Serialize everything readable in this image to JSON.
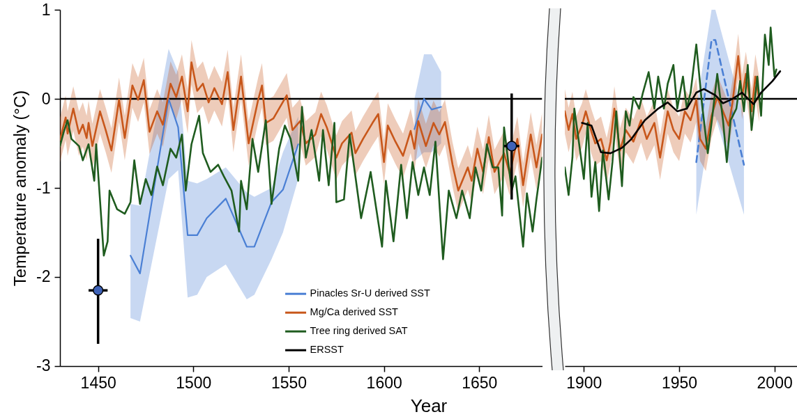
{
  "chart_data": [
    {
      "type": "line",
      "xlabel": "Year",
      "ylabel": "Temperature anomaly (°C)",
      "xlim": [
        1430,
        1683
      ],
      "xticks": [
        1450,
        1500,
        1550,
        1600,
        1650
      ],
      "ylim": [
        -3,
        1
      ],
      "yticks": [
        -3,
        -2,
        -1,
        0,
        1
      ],
      "legend": "bottom",
      "ref_lines": [
        {
          "axis": "y",
          "value": 0,
          "color": "#000000"
        }
      ],
      "series": [
        {
          "name": "Pinacles Sr-U derived SST",
          "color": "#4a7fd4",
          "x": [
            1467,
            1472,
            1487,
            1492,
            1497,
            1502,
            1507,
            1517,
            1528,
            1532,
            1541,
            1547,
            1555,
            1585,
            1616,
            1621,
            1625,
            1630
          ],
          "values": [
            -1.76,
            -1.96,
            0.0,
            -0.32,
            -1.53,
            -1.53,
            -1.34,
            -1.12,
            -1.66,
            -1.66,
            -1.16,
            -1.02,
            -0.51,
            null,
            -0.34,
            0.0,
            -0.12,
            -0.09
          ],
          "lower": [
            -2.46,
            -2.5,
            -0.9,
            -0.8,
            -2.23,
            -2.2,
            -2.0,
            -1.86,
            -2.25,
            -2.2,
            -1.8,
            -1.5,
            -0.9,
            null,
            -0.7,
            -0.6,
            -0.6,
            -0.5
          ],
          "upper": [
            -1.18,
            -1.2,
            0.56,
            0.3,
            -0.92,
            -0.95,
            -0.9,
            -0.77,
            -1.05,
            -1.1,
            -1.0,
            -0.6,
            -0.2,
            null,
            0.0,
            0.5,
            0.5,
            0.3
          ]
        },
        {
          "name": "Mg/Ca derived SST",
          "color": "#c8571b",
          "x": [
            1430,
            1433,
            1434,
            1437,
            1440,
            1442,
            1444,
            1445,
            1447,
            1451,
            1454,
            1457,
            1461,
            1464,
            1468,
            1471,
            1474,
            1477,
            1481,
            1484,
            1488,
            1491,
            1494,
            1497,
            1499,
            1502,
            1505,
            1508,
            1511,
            1515,
            1518,
            1521,
            1525,
            1529,
            1534,
            1536,
            1538,
            1542,
            1549,
            1552,
            1556,
            1559,
            1564,
            1567,
            1570,
            1575,
            1578,
            1583,
            1585,
            1589,
            1594,
            1597,
            1600,
            1602,
            1606,
            1610,
            1614,
            1616,
            1618,
            1622,
            1626,
            1629,
            1632,
            1636,
            1639,
            1644,
            1646,
            1649,
            1652,
            1655,
            1658,
            1663,
            1666,
            1670,
            1673,
            1677,
            1680,
            1683
          ],
          "values": [
            -0.46,
            -0.21,
            -0.39,
            -0.11,
            -0.39,
            -0.29,
            -0.44,
            -0.27,
            -0.53,
            -0.14,
            -0.35,
            -0.58,
            -0.01,
            -0.44,
            0.15,
            -0.01,
            0.21,
            -0.37,
            -0.14,
            -0.29,
            0.17,
            0.02,
            0.25,
            -0.14,
            0.41,
            0.09,
            0.17,
            -0.04,
            0.12,
            -0.06,
            0.3,
            -0.35,
            0.25,
            -0.5,
            -0.01,
            0.15,
            -0.27,
            -0.22,
            0.04,
            -0.35,
            -0.25,
            -0.5,
            -0.4,
            -0.17,
            -0.32,
            -0.66,
            -0.5,
            -0.38,
            -0.61,
            -0.45,
            -0.27,
            -0.17,
            -0.71,
            -0.3,
            -0.48,
            -0.64,
            -0.36,
            -0.56,
            -0.25,
            -0.53,
            -0.27,
            -0.4,
            -0.26,
            -0.74,
            -1.03,
            -0.77,
            -0.92,
            -0.56,
            -0.82,
            -0.43,
            -0.82,
            -0.61,
            -0.84,
            -0.45,
            -0.97,
            -0.4,
            -0.77,
            -0.4
          ],
          "lower": [
            -0.71,
            -0.46,
            -0.64,
            -0.36,
            -0.64,
            -0.54,
            -0.69,
            -0.52,
            -0.78,
            -0.39,
            -0.6,
            -0.83,
            -0.26,
            -0.69,
            -0.1,
            -0.26,
            -0.04,
            -0.62,
            -0.39,
            -0.54,
            -0.08,
            -0.23,
            0.0,
            -0.39,
            0.16,
            -0.16,
            -0.08,
            -0.29,
            -0.13,
            -0.31,
            0.05,
            -0.6,
            0.0,
            -0.75,
            -0.26,
            -0.1,
            -0.52,
            -0.47,
            -0.21,
            -0.6,
            -0.5,
            -0.75,
            -0.65,
            -0.42,
            -0.57,
            -0.91,
            -0.75,
            -0.63,
            -0.86,
            -0.7,
            -0.52,
            -0.42,
            -0.96,
            -0.55,
            -0.73,
            -0.89,
            -0.61,
            -0.81,
            -0.5,
            -0.78,
            -0.52,
            -0.65,
            -0.51,
            -0.99,
            -1.28,
            -1.02,
            -1.17,
            -0.81,
            -1.07,
            -0.68,
            -1.07,
            -0.86,
            -1.09,
            -0.7,
            -1.22,
            -0.65,
            -1.02,
            -0.65
          ],
          "upper": [
            -0.21,
            0.04,
            -0.14,
            0.14,
            -0.14,
            -0.04,
            -0.19,
            -0.02,
            -0.28,
            0.11,
            -0.1,
            -0.33,
            0.24,
            -0.19,
            0.4,
            0.24,
            0.46,
            -0.12,
            0.11,
            -0.04,
            0.42,
            0.27,
            0.5,
            0.11,
            0.66,
            0.34,
            0.42,
            0.21,
            0.37,
            0.19,
            0.55,
            -0.1,
            0.5,
            -0.25,
            0.24,
            0.4,
            -0.02,
            0.03,
            0.29,
            -0.1,
            0.0,
            -0.25,
            -0.15,
            0.08,
            -0.07,
            -0.41,
            -0.25,
            -0.13,
            -0.36,
            -0.2,
            -0.02,
            0.08,
            -0.46,
            -0.05,
            -0.23,
            -0.39,
            -0.11,
            -0.31,
            0.0,
            -0.28,
            -0.02,
            -0.15,
            -0.01,
            -0.49,
            -0.78,
            -0.52,
            -0.67,
            -0.31,
            -0.57,
            -0.18,
            -0.57,
            -0.36,
            -0.59,
            -0.2,
            -0.72,
            -0.15,
            -0.52,
            -0.15
          ]
        },
        {
          "name": "Tree ring derived SAT",
          "color": "#1f5c1f",
          "x": [
            1430,
            1432,
            1434,
            1436,
            1440,
            1442,
            1445,
            1448,
            1449,
            1453,
            1455,
            1456,
            1460,
            1464,
            1467,
            1469,
            1472,
            1475,
            1478,
            1481,
            1484,
            1488,
            1491,
            1494,
            1496,
            1499,
            1503,
            1505,
            1509,
            1513,
            1516,
            1520,
            1524,
            1525,
            1528,
            1531,
            1534,
            1538,
            1541,
            1545,
            1548,
            1551,
            1555,
            1557,
            1559,
            1562,
            1566,
            1568,
            1571,
            1574,
            1575,
            1579,
            1582,
            1588,
            1591,
            1593,
            1596,
            1599,
            1601,
            1605,
            1609,
            1612,
            1615,
            1618,
            1621,
            1624,
            1627,
            1631,
            1634,
            1638,
            1641,
            1645,
            1648,
            1651,
            1654,
            1657,
            1660,
            1662,
            1663,
            1667,
            1669,
            1673,
            1675,
            1678,
            1680,
            1683
          ],
          "values": [
            -0.53,
            -0.37,
            -0.24,
            -0.45,
            -0.53,
            -0.69,
            -0.51,
            -0.92,
            -0.51,
            -1.76,
            -1.6,
            -1.03,
            -1.24,
            -1.29,
            -1.16,
            -0.69,
            -1.18,
            -0.9,
            -1.08,
            -0.76,
            -0.97,
            -0.56,
            -0.66,
            -0.4,
            -1.03,
            -0.51,
            -0.19,
            -0.61,
            -0.82,
            -0.74,
            -0.87,
            -1.03,
            -1.49,
            -0.92,
            -1.24,
            -0.45,
            -0.82,
            -0.24,
            -1.18,
            -0.56,
            -0.3,
            -0.45,
            -0.92,
            -0.09,
            -0.66,
            -0.35,
            -0.92,
            -0.35,
            -0.97,
            -0.27,
            -1.16,
            -1.13,
            -0.4,
            -1.34,
            -1.03,
            -0.82,
            -1.24,
            -1.66,
            -0.92,
            -1.6,
            -0.74,
            -1.34,
            -0.71,
            -1.08,
            -0.77,
            -1.08,
            -0.48,
            -1.8,
            -1.03,
            -1.34,
            -1.03,
            -1.34,
            -0.77,
            -1.03,
            -0.51,
            -0.77,
            -0.77,
            -1.31,
            -0.32,
            -1.03,
            -0.87,
            -1.66,
            -1.06,
            -1.49,
            -1.13,
            -0.66
          ]
        },
        {
          "type": "scatter",
          "color": "#3f63b8",
          "marker": "circle",
          "x": [
            1450,
            1667
          ],
          "values": [
            -2.15,
            -0.53
          ],
          "errors": [
            [
              -2.75,
              -1.57
            ],
            [
              -1.13,
              0.06
            ]
          ],
          "xerrors": [
            5,
            4
          ]
        }
      ]
    },
    {
      "type": "line",
      "xlim": [
        1890,
        2012
      ],
      "xticks": [
        1900,
        1950,
        2000
      ],
      "ylim": [
        -3,
        1
      ],
      "yticks": [
        -3,
        -2,
        -1,
        0,
        1
      ],
      "tick_labels": "x",
      "ref_lines": [
        {
          "axis": "y",
          "value": 0,
          "color": "#000000"
        }
      ],
      "series": [
        {
          "color": "#4a7fd4",
          "line_style": "dashed",
          "x": [
            1959,
            1967,
            1969,
            1984
          ],
          "values": [
            -0.71,
            0.66,
            0.66,
            -0.74
          ],
          "lower": [
            -1.3,
            -0.2,
            -0.2,
            -1.3
          ],
          "upper": [
            -0.1,
            1.0,
            1.0,
            -0.2
          ]
        },
        {
          "color": "#c8571b",
          "x": [
            1890,
            1892,
            1894,
            1896,
            1899,
            1901,
            1904,
            1906,
            1909,
            1912,
            1914,
            1916,
            1919,
            1922,
            1926,
            1930,
            1933,
            1937,
            1940,
            1944,
            1947,
            1950,
            1953,
            1956,
            1959,
            1961,
            1964,
            1967,
            1970,
            1973,
            1976,
            1978,
            1981,
            1983,
            1985,
            1988,
            1990,
            1992
          ],
          "values": [
            -0.14,
            -0.35,
            -0.17,
            -0.45,
            -0.3,
            -0.14,
            -0.37,
            -0.5,
            -0.45,
            -0.69,
            -0.48,
            -0.11,
            -0.58,
            -0.35,
            -0.48,
            -0.24,
            -0.45,
            -0.27,
            -0.66,
            -0.14,
            -0.35,
            -0.45,
            -0.14,
            -0.24,
            -0.01,
            -0.45,
            -0.56,
            -0.19,
            0.02,
            -0.14,
            -0.3,
            -0.04,
            0.48,
            0.02,
            0.28,
            -0.14,
            0.25,
            -0.01
          ],
          "lower": [
            -0.39,
            -0.6,
            -0.42,
            -0.7,
            -0.55,
            -0.39,
            -0.62,
            -0.75,
            -0.7,
            -0.94,
            -0.73,
            -0.36,
            -0.83,
            -0.6,
            -0.73,
            -0.49,
            -0.7,
            -0.52,
            -0.91,
            -0.39,
            -0.6,
            -0.7,
            -0.39,
            -0.49,
            -0.26,
            -0.7,
            -0.81,
            -0.44,
            -0.23,
            -0.39,
            -0.55,
            -0.29,
            0.23,
            -0.23,
            0.03,
            -0.39,
            0.0,
            -0.26
          ],
          "upper": [
            0.11,
            -0.1,
            0.08,
            -0.2,
            -0.05,
            0.11,
            -0.12,
            -0.25,
            -0.2,
            -0.44,
            -0.23,
            0.14,
            -0.33,
            -0.1,
            -0.23,
            0.01,
            -0.2,
            -0.02,
            -0.41,
            0.11,
            -0.1,
            -0.2,
            0.11,
            0.01,
            0.24,
            -0.2,
            -0.31,
            0.06,
            0.27,
            0.11,
            -0.05,
            0.21,
            0.73,
            0.27,
            0.53,
            0.11,
            0.5,
            0.24
          ]
        },
        {
          "color": "#1f5c1f",
          "x": [
            1890,
            1892,
            1894,
            1895,
            1898,
            1900,
            1902,
            1904,
            1906,
            1908,
            1910,
            1913,
            1915,
            1917,
            1920,
            1922,
            1924,
            1926,
            1929,
            1931,
            1934,
            1937,
            1939,
            1942,
            1944,
            1947,
            1949,
            1952,
            1954,
            1956,
            1959,
            1962,
            1965,
            1967,
            1970,
            1973,
            1975,
            1977,
            1980,
            1982,
            1984,
            1986,
            1988,
            1991,
            1993,
            1995,
            1997,
            1998,
            2000,
            2001
          ],
          "values": [
            -0.77,
            -1.08,
            -0.66,
            -0.11,
            -0.58,
            -0.9,
            -0.27,
            -1.1,
            -0.71,
            -1.26,
            -0.58,
            -1.13,
            -0.71,
            -0.14,
            -0.98,
            -0.14,
            -0.3,
            0.02,
            -0.11,
            0.07,
            0.3,
            -0.11,
            0.25,
            -0.11,
            0.17,
            0.38,
            -0.11,
            0.25,
            -0.11,
            0.07,
            0.61,
            -0.06,
            -0.61,
            -0.27,
            0.28,
            -0.24,
            -0.71,
            -0.24,
            -0.11,
            0.2,
            -0.14,
            0.38,
            -0.35,
            0.25,
            -0.19,
            0.72,
            0.38,
            0.8,
            0.25,
            0.33
          ]
        },
        {
          "name": "ERSST",
          "color": "#000000",
          "x": [
            1899,
            1904,
            1909,
            1914,
            1920,
            1925,
            1932,
            1939,
            1944,
            1949,
            1954,
            1959,
            1963,
            1969,
            1973,
            1978,
            1983,
            1989,
            1993,
            1999,
            2003
          ],
          "values": [
            -0.27,
            -0.3,
            -0.6,
            -0.61,
            -0.55,
            -0.45,
            -0.24,
            -0.11,
            -0.04,
            -0.14,
            -0.11,
            0.07,
            0.11,
            0.04,
            -0.05,
            0.0,
            0.07,
            -0.06,
            0.07,
            0.2,
            0.31
          ]
        }
      ]
    }
  ]
}
